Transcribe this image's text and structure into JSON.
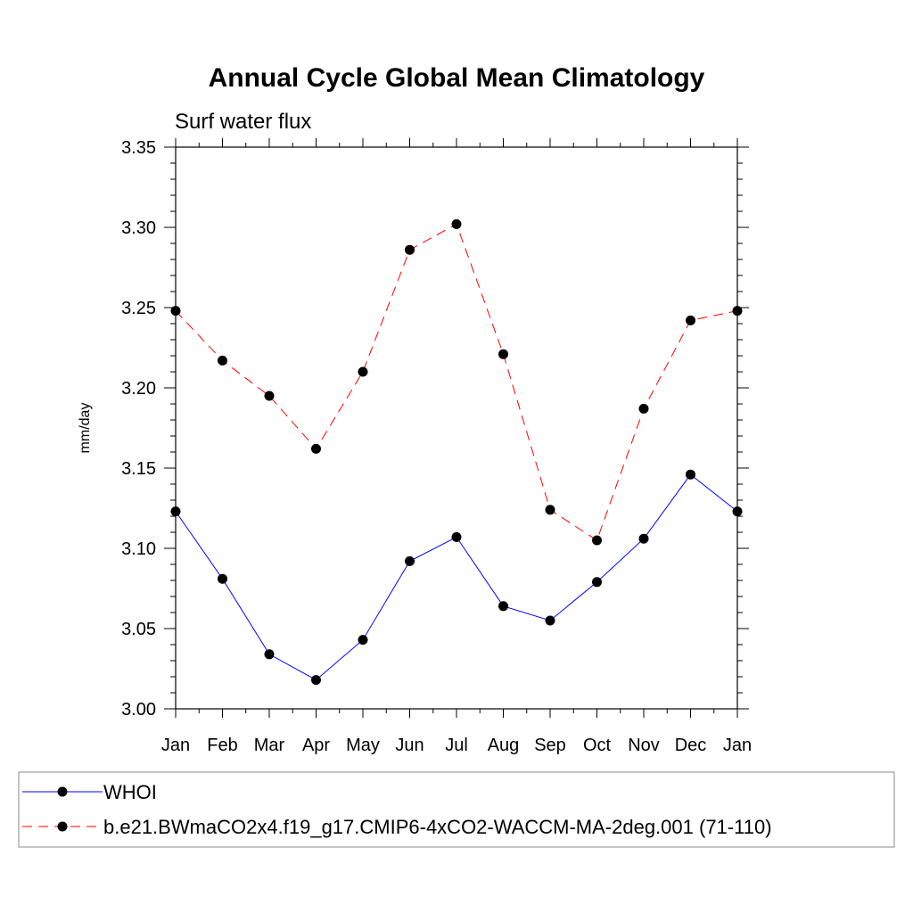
{
  "chart_data": {
    "type": "line",
    "title": "Annual Cycle Global Mean Climatology",
    "subtitle": "Surf water flux",
    "xlabel": "",
    "ylabel": "mm/day",
    "categories": [
      "Jan",
      "Feb",
      "Mar",
      "Apr",
      "May",
      "Jun",
      "Jul",
      "Aug",
      "Sep",
      "Oct",
      "Nov",
      "Dec",
      "Jan"
    ],
    "yticks": [
      "3.00",
      "3.05",
      "3.10",
      "3.15",
      "3.20",
      "3.25",
      "3.30",
      "3.35"
    ],
    "ylim": [
      3.0,
      3.35
    ],
    "series": [
      {
        "name": "WHOI",
        "color": "#0000ff",
        "style": "solid",
        "values": [
          3.123,
          3.081,
          3.034,
          3.018,
          3.043,
          3.092,
          3.107,
          3.064,
          3.055,
          3.079,
          3.106,
          3.146,
          3.123
        ]
      },
      {
        "name": "b.e21.BWmaCO2x4.f19_g17.CMIP6-4xCO2-WACCM-MA-2deg.001 (71-110)",
        "color": "#ff0000",
        "style": "dashed",
        "values": [
          3.248,
          3.217,
          3.195,
          3.162,
          3.21,
          3.286,
          3.302,
          3.221,
          3.124,
          3.105,
          3.187,
          3.242,
          3.248
        ]
      }
    ],
    "legend_position": "bottom"
  }
}
